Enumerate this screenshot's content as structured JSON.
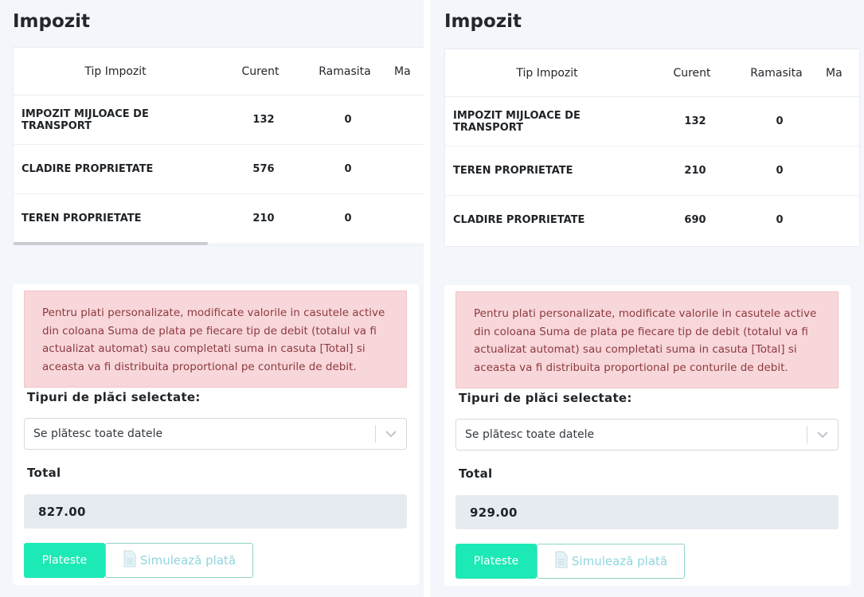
{
  "left": {
    "title": "Impozit",
    "columns": {
      "tip": "Tip Impozit",
      "curent": "Curent",
      "ramasita": "Ramasita",
      "ma": "Ma"
    },
    "rows": [
      {
        "tip": "IMPOZIT MIJLOACE DE TRANSPORT",
        "curent": "132",
        "ramasita": "0"
      },
      {
        "tip": "CLADIRE PROPRIETATE",
        "curent": "576",
        "ramasita": "0"
      },
      {
        "tip": "TEREN PROPRIETATE",
        "curent": "210",
        "ramasita": "0"
      }
    ],
    "alert": "Pentru plati personalizate, modificate valorile in casutele active din coloana Suma de plata pe fiecare tip de debit (totalul va fi actualizat automat) sau completati suma in casuta [Total] si aceasta va fi distribuita proportional pe conturile de debit.",
    "types_label": "Tipuri de plăci selectate:",
    "select_value": "Se plătesc toate datele",
    "total_label": "Total",
    "total_value": "827.00",
    "pay_label": "Plateste",
    "simulate_label": "Simulează plată"
  },
  "right": {
    "title": "Impozit",
    "columns": {
      "tip": "Tip Impozit",
      "curent": "Curent",
      "ramasita": "Ramasita",
      "ma": "Ma"
    },
    "rows": [
      {
        "tip": "IMPOZIT MIJLOACE DE TRANSPORT",
        "curent": "132",
        "ramasita": "0"
      },
      {
        "tip": "TEREN PROPRIETATE",
        "curent": "210",
        "ramasita": "0"
      },
      {
        "tip": "CLADIRE PROPRIETATE",
        "curent": "690",
        "ramasita": "0"
      }
    ],
    "alert": "Pentru plati personalizate, modificate valorile in casutele active din coloana Suma de plata pe fiecare tip de debit (totalul va fi actualizat automat) sau completati suma in casuta [Total] si aceasta va fi distribuita proportional pe conturile de debit.",
    "types_label": "Tipuri de plăci selectate:",
    "select_value": "Se plătesc toate datele",
    "total_label": "Total",
    "total_value": "929.00",
    "pay_label": "Plateste",
    "simulate_label": "Simulează plată"
  },
  "icons": {
    "dropdown": "chevron-down-icon",
    "simulate": "document-icon"
  },
  "colors": {
    "accent": "#1de9b6",
    "alert_bg": "#f8d7da",
    "alert_text": "#8c3a40",
    "total_bg": "#e6ebf2"
  }
}
